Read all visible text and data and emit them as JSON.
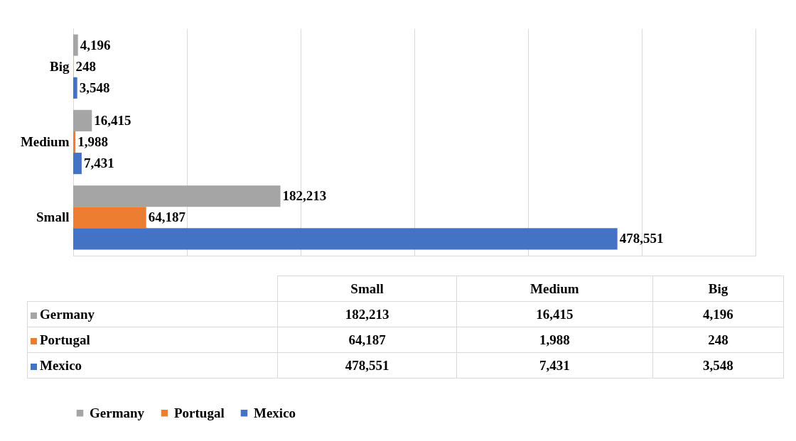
{
  "chart_data": {
    "type": "bar",
    "orientation": "horizontal",
    "categories": [
      "Big",
      "Medium",
      "Small"
    ],
    "series": [
      {
        "name": "Germany",
        "color": "#a5a5a5",
        "values": [
          4196,
          16415,
          182213
        ],
        "value_labels": [
          "4,196",
          "16,415",
          "182,213"
        ]
      },
      {
        "name": "Portugal",
        "color": "#ed7d31",
        "values": [
          248,
          1988,
          64187
        ],
        "value_labels": [
          "248",
          "1,988",
          "64,187"
        ]
      },
      {
        "name": "Mexico",
        "color": "#4472c4",
        "values": [
          3548,
          7431,
          478551
        ],
        "value_labels": [
          "3,548",
          "7,431",
          "478,551"
        ]
      }
    ],
    "xlim": [
      0,
      600000
    ],
    "xticks": [
      {
        "value": 0,
        "label": null
      },
      {
        "value": 100000,
        "label": null
      },
      {
        "value": 200000,
        "label": null
      },
      {
        "value": 300000,
        "label": null
      },
      {
        "value": 400000,
        "label": null
      },
      {
        "value": 500000,
        "label": null
      },
      {
        "value": 600000,
        "label": null
      }
    ],
    "tick_labels": "y",
    "grid": "x",
    "legend": "bottom"
  }
}
